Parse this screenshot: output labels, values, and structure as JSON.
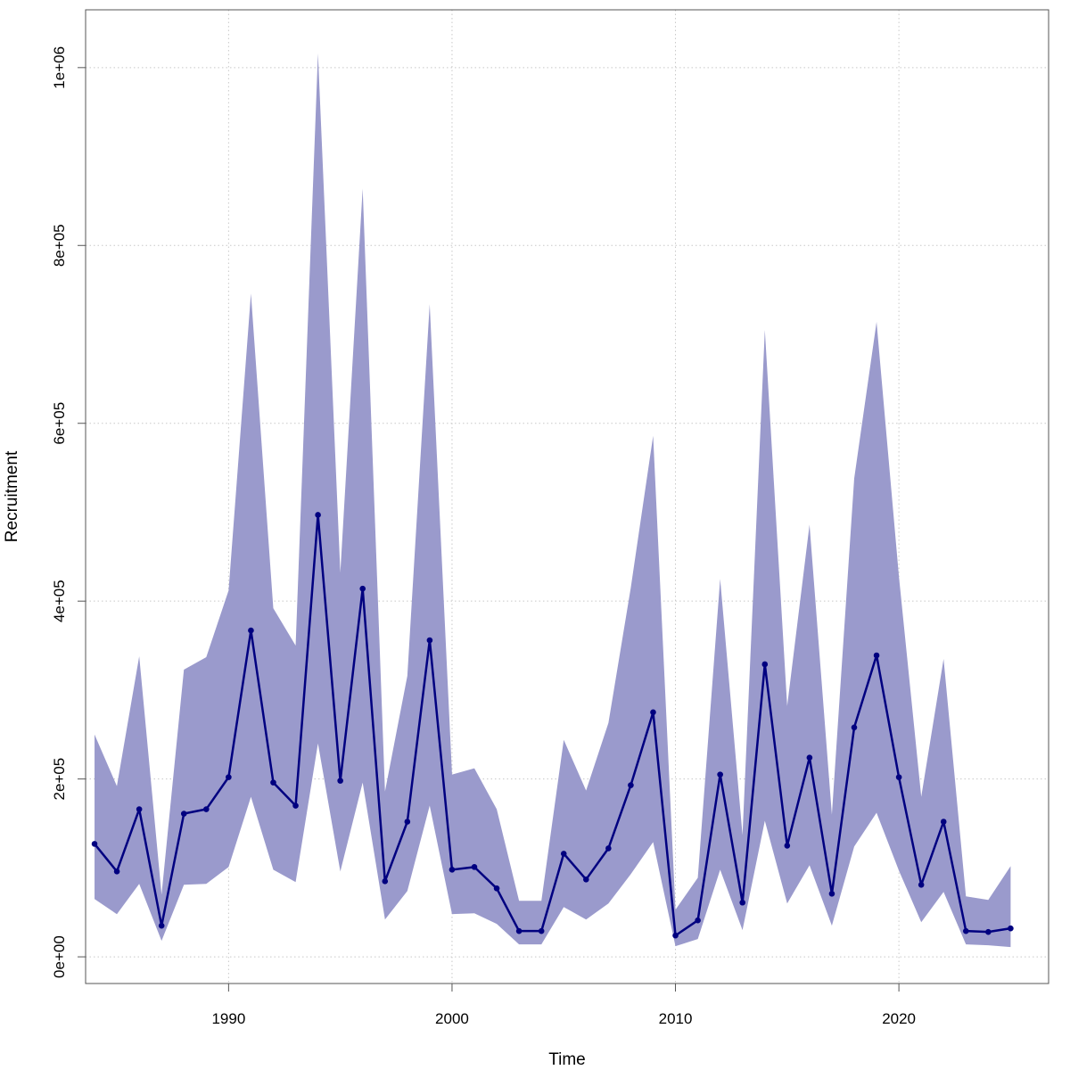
{
  "colors": {
    "band": "#9a9acc",
    "line": "#000080",
    "grid": "#c8c8c8",
    "axis": "#555555"
  },
  "chart_data": {
    "type": "line",
    "title": "",
    "xlabel": "Time",
    "ylabel": "Recruitment",
    "xlim": [
      1983.6,
      2026.7
    ],
    "ylim": [
      -30000,
      1065000
    ],
    "x_ticks": [
      1990,
      2000,
      2010,
      2020
    ],
    "x_tick_labels": [
      "1990",
      "2000",
      "2010",
      "2020"
    ],
    "y_ticks": [
      0,
      200000,
      400000,
      600000,
      800000,
      1000000
    ],
    "y_tick_labels": [
      "0e+00",
      "2e+05",
      "4e+05",
      "6e+05",
      "8e+05",
      "1e+06"
    ],
    "grid": true,
    "x": [
      1984,
      1985,
      1986,
      1987,
      1988,
      1989,
      1990,
      1991,
      1992,
      1993,
      1994,
      1995,
      1996,
      1997,
      1998,
      1999,
      2000,
      2001,
      2002,
      2003,
      2004,
      2005,
      2006,
      2007,
      2008,
      2009,
      2010,
      2011,
      2012,
      2013,
      2014,
      2015,
      2016,
      2017,
      2018,
      2019,
      2020,
      2021,
      2022,
      2023,
      2024,
      2025
    ],
    "series": [
      {
        "name": "Recruitment",
        "values": [
          127000,
          96000,
          166000,
          35000,
          161000,
          166000,
          202000,
          367000,
          196000,
          170000,
          497000,
          198000,
          414000,
          85000,
          152000,
          356000,
          98000,
          101000,
          77000,
          29000,
          29000,
          116000,
          87000,
          122000,
          193000,
          275000,
          24000,
          41000,
          205000,
          61000,
          329000,
          125000,
          224000,
          71000,
          258000,
          339000,
          202000,
          81000,
          152000,
          29000,
          28000,
          32000
        ]
      }
    ],
    "band_lower": [
      65000,
      48000,
      82000,
      18000,
      81000,
      82000,
      101000,
      180000,
      98000,
      84000,
      240000,
      96000,
      196000,
      42000,
      74000,
      170000,
      48000,
      49000,
      37000,
      14000,
      14000,
      56000,
      42000,
      60000,
      93000,
      129000,
      12000,
      20000,
      98000,
      30000,
      153000,
      60000,
      103000,
      35000,
      124000,
      162000,
      97000,
      39000,
      73000,
      14000,
      13000,
      11000
    ],
    "band_upper": [
      250000,
      192000,
      338000,
      70000,
      323000,
      337000,
      412000,
      746000,
      392000,
      350000,
      1016000,
      432000,
      864000,
      186000,
      316000,
      734000,
      205000,
      212000,
      166000,
      63000,
      63000,
      244000,
      187000,
      263000,
      415000,
      586000,
      53000,
      89000,
      425000,
      137000,
      705000,
      282000,
      486000,
      160000,
      538000,
      714000,
      428000,
      180000,
      335000,
      68000,
      64000,
      102000
    ]
  }
}
